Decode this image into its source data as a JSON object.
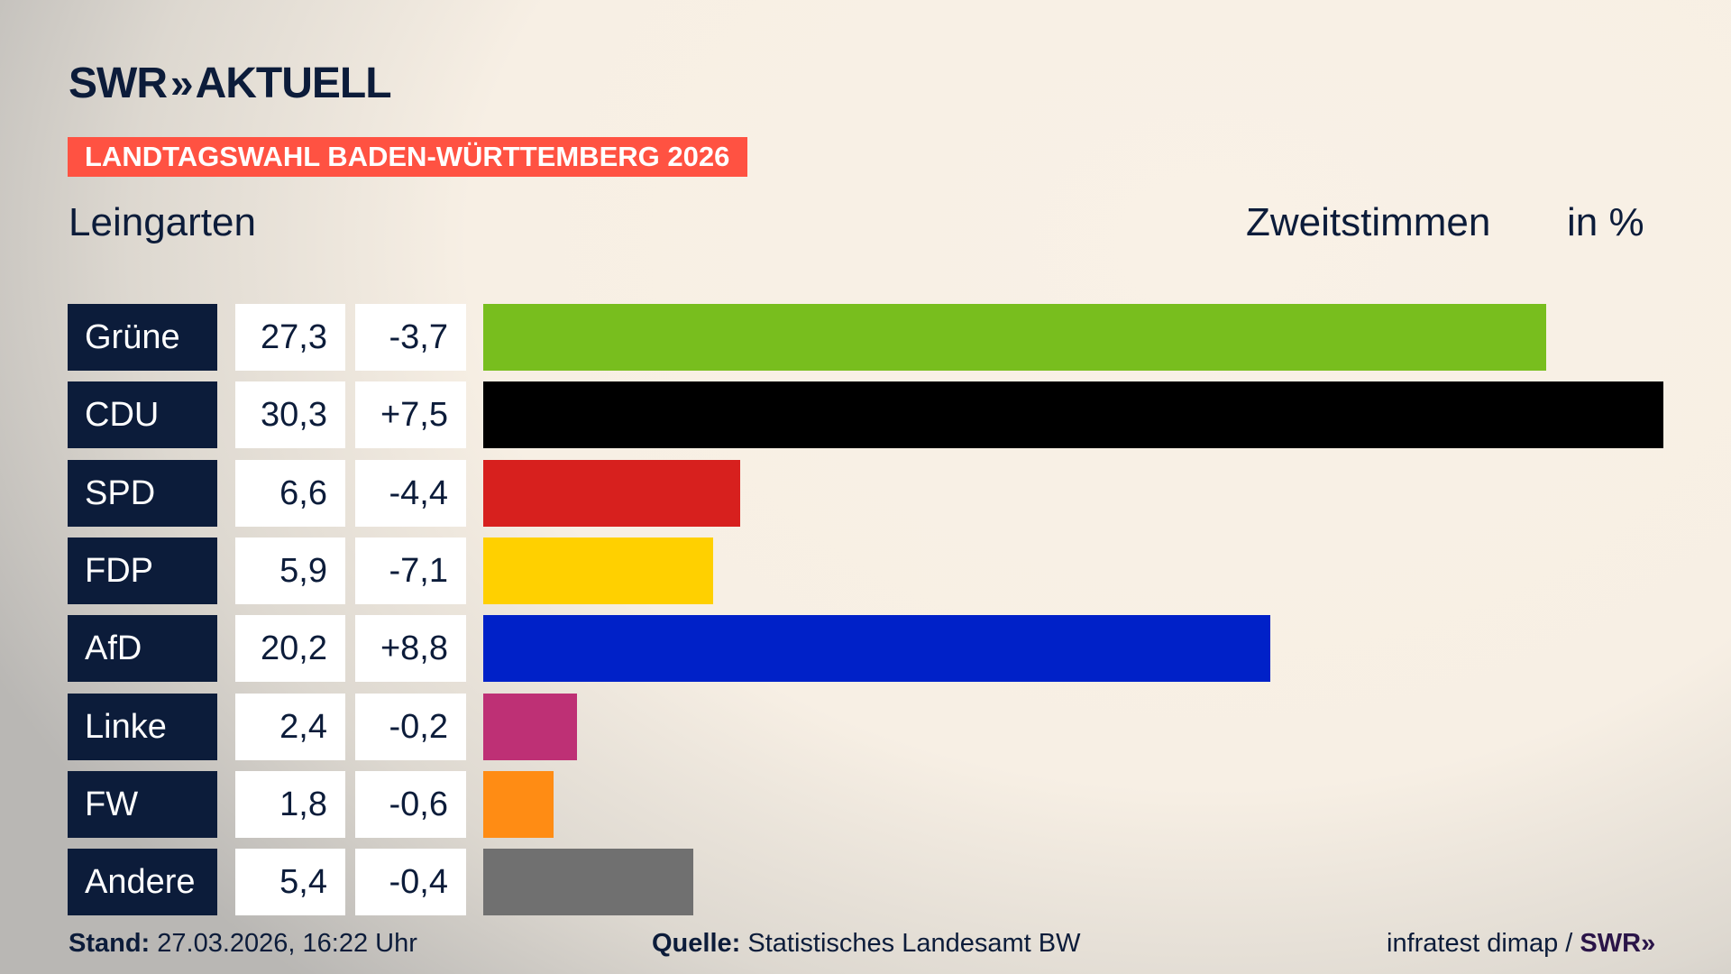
{
  "brand": {
    "logo_text": "SWR",
    "logo_suffix": "AKTUELL"
  },
  "banner": "LANDTAGSWAHL BADEN-WÜRTTEMBERG 2026",
  "location": "Leingarten",
  "measure": "Zweitstimmen",
  "unit": "in %",
  "footer": {
    "stand_label": "Stand:",
    "stand_value": "27.03.2026, 16:22 Uhr",
    "quelle_label": "Quelle:",
    "quelle_value": "Statistisches Landesamt BW",
    "credit": "infratest dimap /",
    "credit_logo": "SWR"
  },
  "chart_data": {
    "type": "bar",
    "orientation": "horizontal",
    "categories": [
      "Grüne",
      "CDU",
      "SPD",
      "FDP",
      "AfD",
      "Linke",
      "FW",
      "Andere"
    ],
    "values": [
      27.3,
      30.3,
      6.6,
      5.9,
      20.2,
      2.4,
      1.8,
      5.4
    ],
    "value_labels": [
      "27,3",
      "30,3",
      "6,6",
      "5,9",
      "20,2",
      "2,4",
      "1,8",
      "5,4"
    ],
    "diff_labels": [
      "-3,7",
      "+7,5",
      "-4,4",
      "-7,1",
      "+8,8",
      "-0,2",
      "-0,6",
      "-0,4"
    ],
    "diffs": [
      -3.7,
      7.5,
      -4.4,
      -7.1,
      8.8,
      -0.2,
      -0.6,
      -0.4
    ],
    "colors": [
      "#78be1e",
      "#000000",
      "#d7201e",
      "#ffd000",
      "#0021c8",
      "#be3075",
      "#ff8c14",
      "#707070"
    ],
    "xlim": [
      0,
      30.3
    ],
    "grid": false
  }
}
